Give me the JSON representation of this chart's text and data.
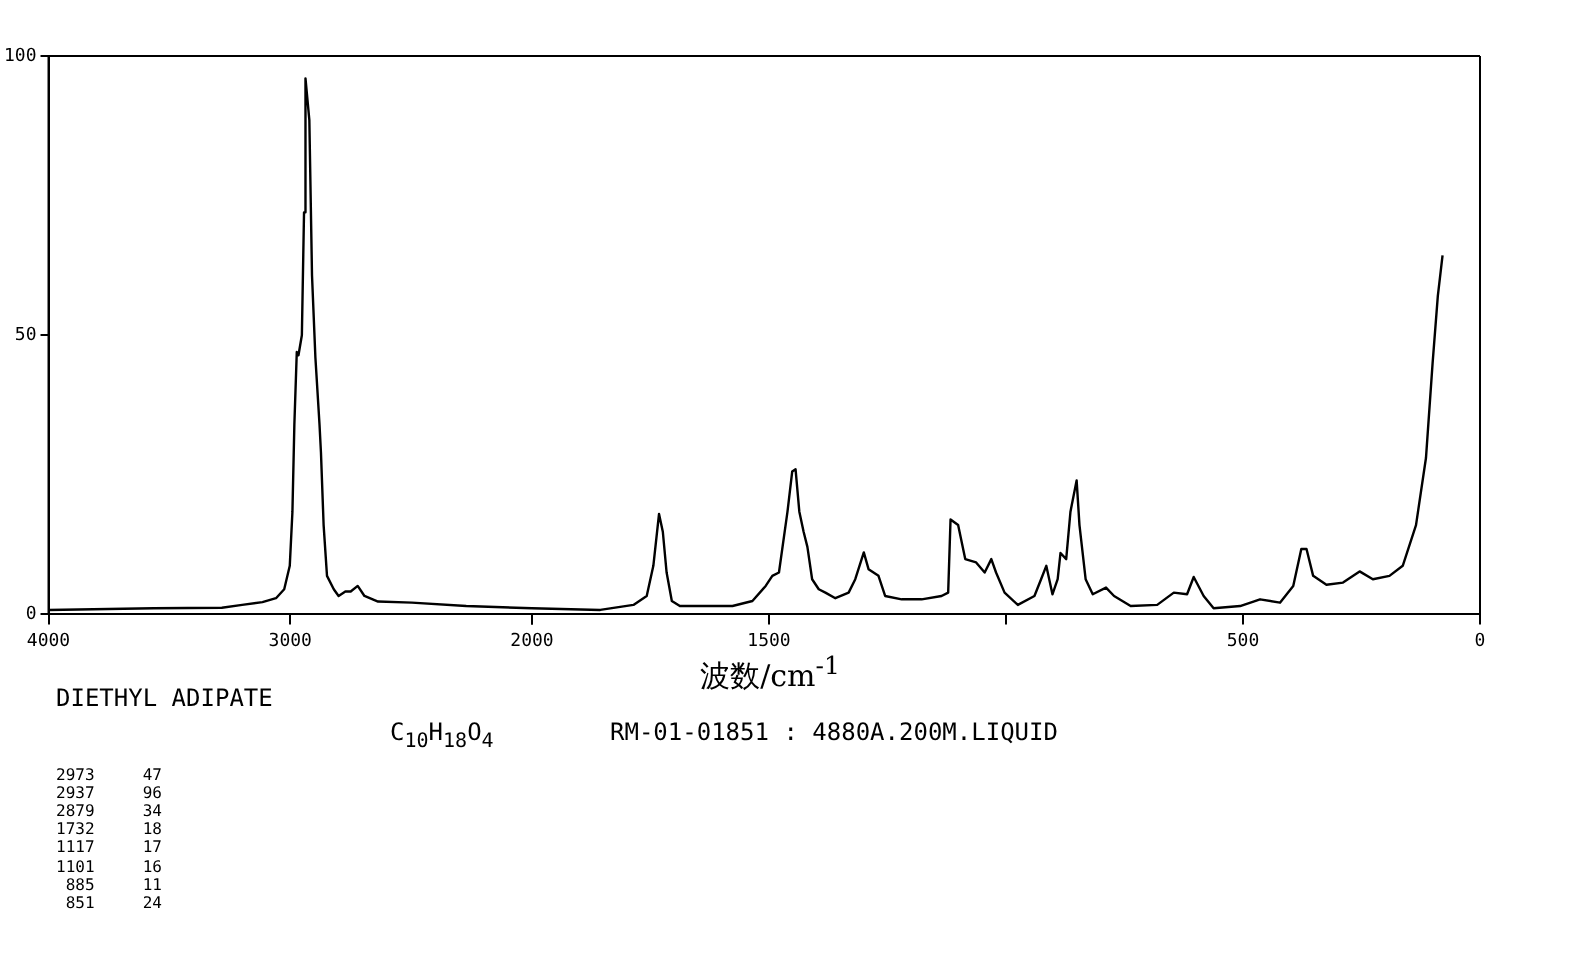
{
  "chart_data": [
    {
      "type": "line",
      "x": [
        4000,
        3565,
        3283,
        3199,
        3115,
        3059,
        3025,
        3002,
        2991,
        2983,
        2973,
        2966,
        2952,
        2943,
        2937,
        2921,
        2910,
        2896,
        2879,
        2873,
        2862,
        2848,
        2820,
        2800,
        2772,
        2750,
        2721,
        2693,
        2637,
        2497,
        2272,
        2000
      ],
      "values": [
        0.8,
        1.1,
        1.2,
        1.7,
        2.2,
        2.9,
        4.5,
        8.7,
        18.4,
        34,
        47,
        46.4,
        50,
        72,
        96,
        88.5,
        60.7,
        46,
        34,
        29,
        16,
        6.9,
        4.5,
        3.3,
        4.1,
        4.1,
        5.1,
        3.3,
        2.3,
        2.1,
        1.5,
        1.1
      ],
      "color": "#000000",
      "xlim": [
        4000,
        2000
      ],
      "xticks": [
        4000,
        3000,
        {
          "value": 2000,
          "label": null
        }
      ],
      "ylim": [
        0,
        100
      ],
      "yticks": [
        0,
        50,
        100
      ],
      "grid": false,
      "legend": false,
      "marker": "none",
      "line_style": "solid",
      "annotations": [
        "DIETHYL ADIPATE",
        "C$_{10}$H$_{18}$O$_{4}$",
        "RM-01-01851 : 4880A.200M.LIQUID",
        "2973     47",
        "2937     96",
        "2879     34",
        "1732     18",
        "1117     17",
        "1101     16",
        " 885     11",
        " 851     24"
      ]
    },
    {
      "type": "line",
      "xlabel": "波数/cm$^{-1}$",
      "x": [
        2000,
        1856,
        1786,
        1758,
        1744,
        1732,
        1724,
        1716,
        1705,
        1688,
        1577,
        1535,
        1507,
        1493,
        1479,
        1461,
        1451,
        1444,
        1436,
        1427,
        1419,
        1409,
        1395,
        1381,
        1360,
        1332,
        1318,
        1300,
        1290,
        1269,
        1255,
        1220,
        1178,
        1136,
        1122,
        1117,
        1101,
        1086,
        1063,
        1045,
        1031,
        1021,
        1003,
        975,
        940,
        926,
        915,
        902,
        891,
        885,
        873,
        864,
        851,
        845,
        832,
        817,
        789,
        772,
        737,
        681,
        646,
        618,
        604,
        583,
        562,
        506,
        464,
        422,
        394,
        377,
        366,
        352,
        324,
        289,
        254,
        226,
        191,
        163,
        135,
        114,
        100,
        89,
        79
      ],
      "values": [
        1.1,
        0.8,
        1.7,
        3.3,
        8.7,
        18,
        14.8,
        7.5,
        2.4,
        1.5,
        1.5,
        2.4,
        5.1,
        6.9,
        7.5,
        18.4,
        25.6,
        26,
        18.4,
        14.8,
        12.1,
        6.3,
        4.5,
        3.9,
        2.9,
        3.9,
        6.3,
        11.1,
        8.1,
        6.9,
        3.3,
        2.7,
        2.7,
        3.3,
        3.9,
        17,
        16,
        9.9,
        9.3,
        7.5,
        9.9,
        7.5,
        3.9,
        1.7,
        3.3,
        6.3,
        8.7,
        3.6,
        6.3,
        11,
        9.9,
        18.4,
        24,
        16,
        6.3,
        3.6,
        4.8,
        3.3,
        1.5,
        1.7,
        3.9,
        3.6,
        6.7,
        3.3,
        1.1,
        1.5,
        2.7,
        2.1,
        5.1,
        11.7,
        11.7,
        6.9,
        5.3,
        5.7,
        7.7,
        6.3,
        6.9,
        8.7,
        16,
        28,
        45,
        57,
        64.3
      ],
      "color": "#000000",
      "xlim": [
        2000,
        0
      ],
      "xticks": [
        2000,
        1500,
        {
          "value": 1000,
          "label": null
        },
        500,
        0
      ],
      "ylim": [
        0,
        100
      ],
      "yticks": [
        0,
        50,
        100
      ],
      "tick_labels": "x",
      "grid": false,
      "legend": false,
      "marker": "none",
      "line_style": "solid"
    }
  ]
}
